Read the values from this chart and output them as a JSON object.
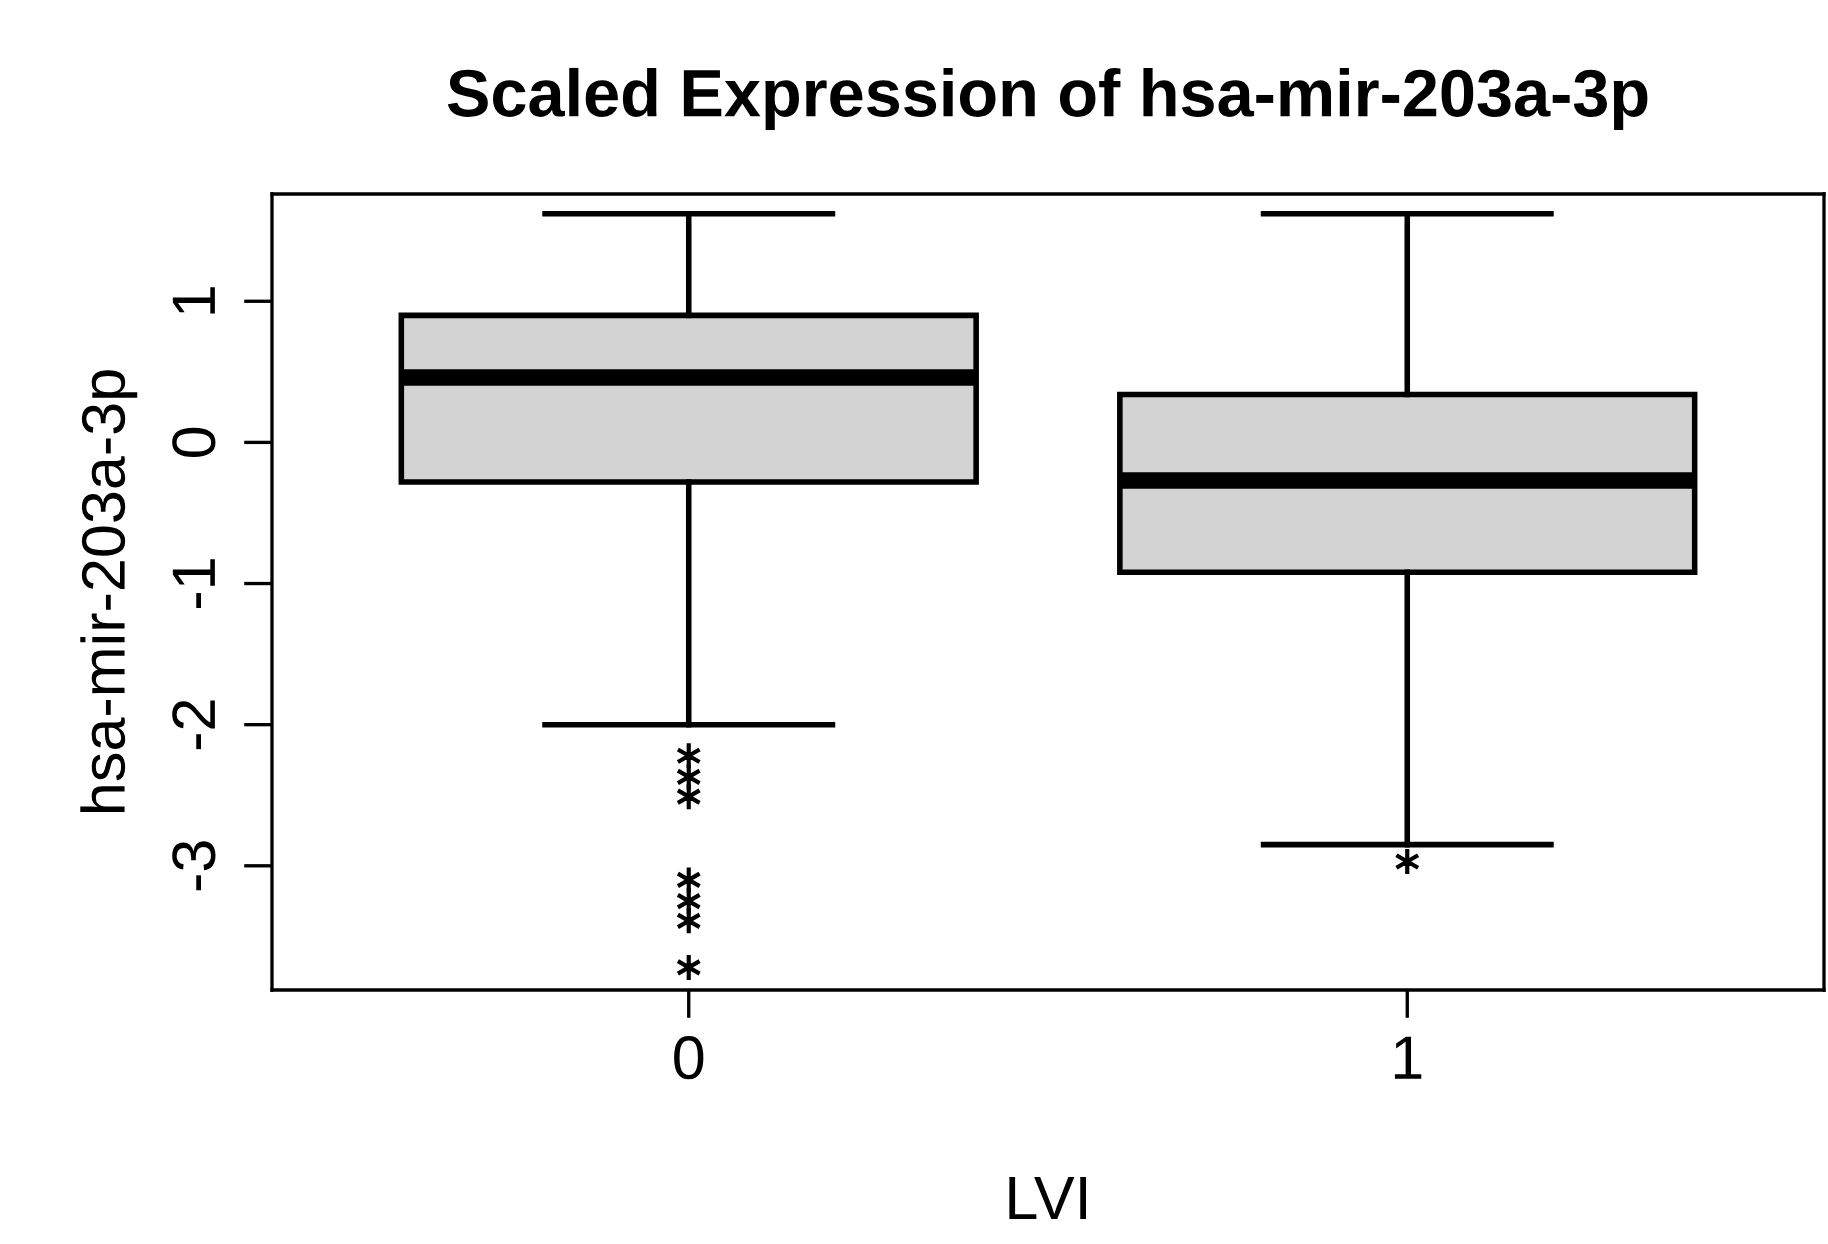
{
  "chart_data": {
    "type": "box",
    "title": "Scaled Expression of hsa-mir-203a-3p",
    "xlabel": "LVI",
    "ylabel": "hsa-mir-203a-3p",
    "categories": [
      "0",
      "1"
    ],
    "series": [
      {
        "color": "#d3d3d3",
        "boxes": [
          {
            "low": -2.0,
            "q1": -0.28,
            "median": 0.46,
            "q3": 0.9,
            "high": 1.62,
            "outliers": [
              -2.22,
              -2.37,
              -2.51,
              -3.1,
              -3.25,
              -3.39,
              -3.72
            ]
          },
          {
            "low": -2.85,
            "q1": -0.92,
            "median": -0.27,
            "q3": 0.34,
            "high": 1.62,
            "outliers": [
              -2.97
            ]
          }
        ]
      }
    ],
    "ylim": [
      -3.88,
      1.76
    ],
    "yticks": [
      -3,
      -2,
      -1,
      0,
      1
    ],
    "marker": "star",
    "grid": false,
    "legend": false
  }
}
